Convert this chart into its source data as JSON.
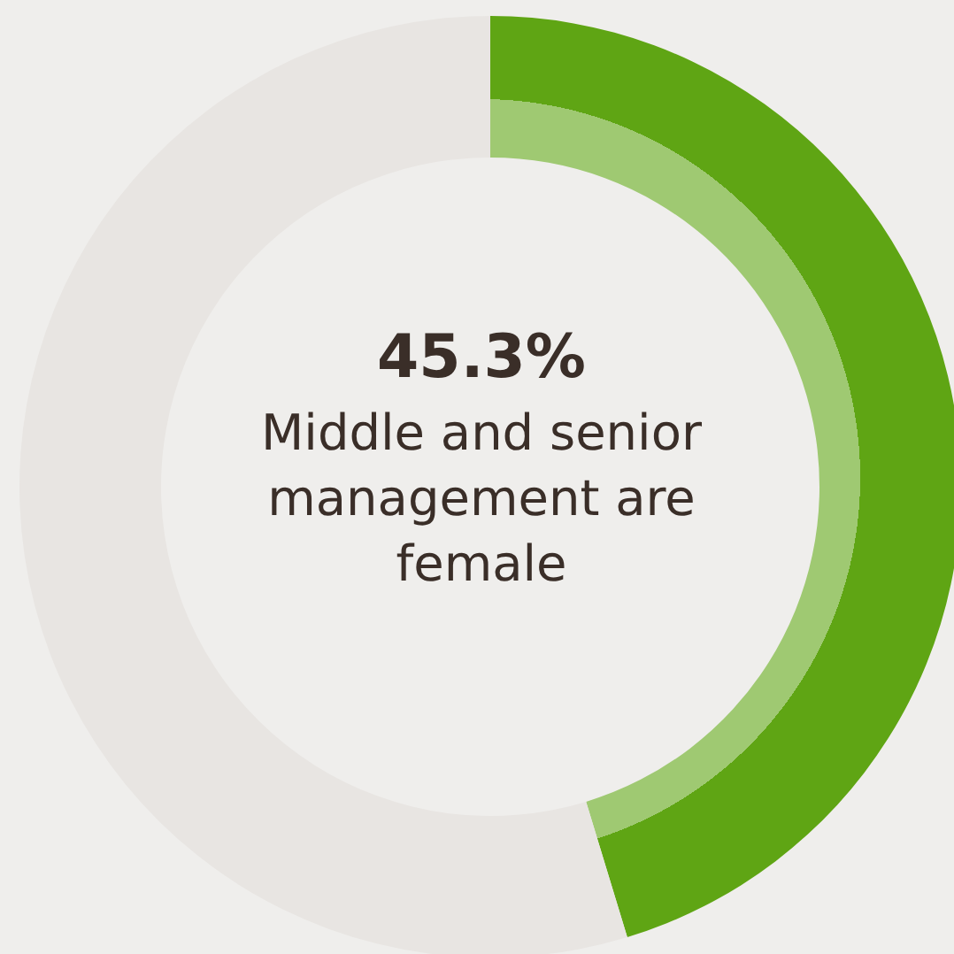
{
  "chart_data": {
    "type": "donut",
    "title": "Middle and senior management are female",
    "categories": [
      null,
      null
    ],
    "values": [
      45.3,
      54.7
    ],
    "colors": [
      "#5fa514",
      "#e8e5e2"
    ],
    "value_labels": [
      "45.3%",
      null
    ]
  }
}
